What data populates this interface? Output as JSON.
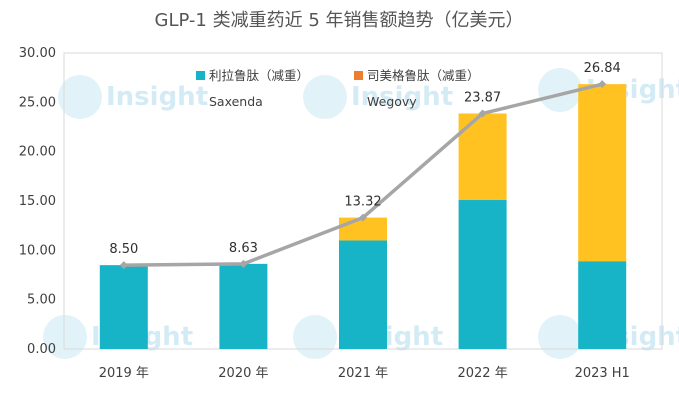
{
  "chart_data": {
    "type": "bar",
    "title": "GLP-1 类减重药近 5 年销售额趋势（亿美元）",
    "categories": [
      "2019 年",
      "2020 年",
      "2021 年",
      "2022 年",
      "2023 H1"
    ],
    "series": [
      {
        "name": "利拉鲁肽（减重）",
        "sub_label": "Saxenda",
        "color": "#17b4c7",
        "values": [
          8.5,
          8.63,
          11.0,
          15.1,
          8.9
        ]
      },
      {
        "name": "司美格鲁肽（减重）",
        "sub_label": "Wegovy",
        "color": "#ffc220",
        "values": [
          0,
          0,
          2.32,
          8.77,
          17.94
        ]
      }
    ],
    "totals": {
      "type": "line",
      "color": "#a6a6a6",
      "values": [
        8.5,
        8.63,
        13.32,
        23.87,
        26.84
      ],
      "labels": [
        "8.50",
        "8.63",
        "13.32",
        "23.87",
        "26.84"
      ]
    },
    "legend_marker_color_series2": "#ed7d31",
    "ylim": [
      0,
      30
    ],
    "yticks": [
      "0.00",
      "5.00",
      "10.00",
      "15.00",
      "20.00",
      "25.00",
      "30.00"
    ],
    "watermark": "Insight"
  }
}
